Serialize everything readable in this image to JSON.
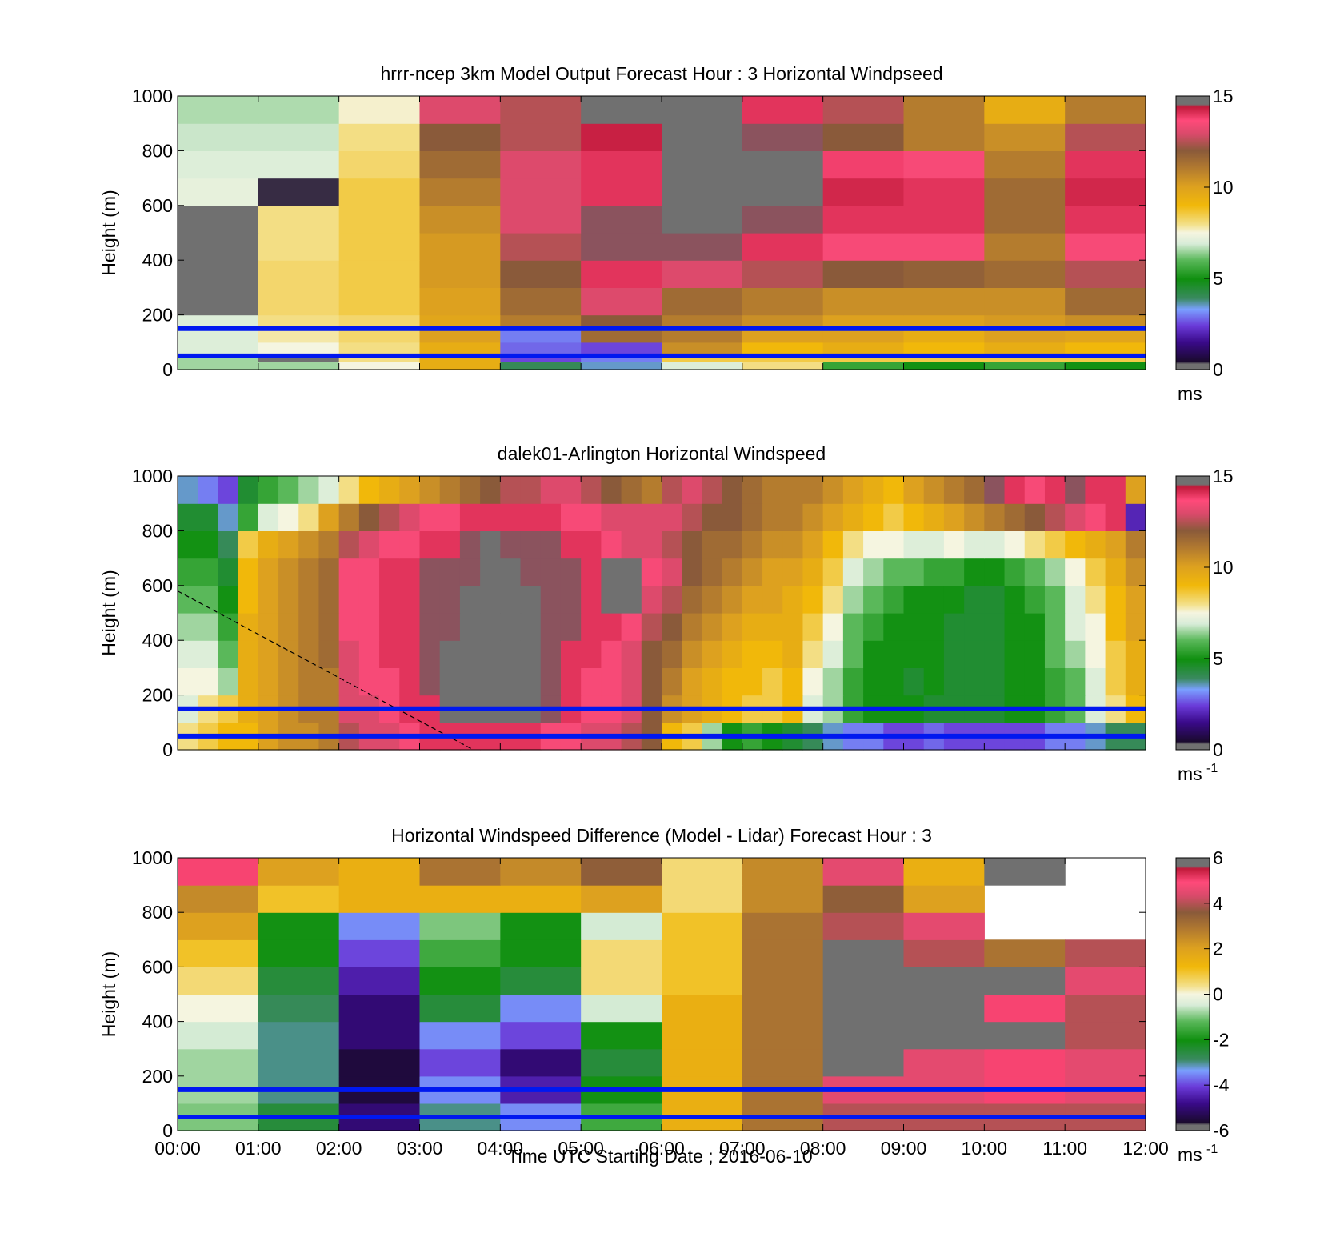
{
  "figure": {
    "xlabel": "Time UTC  Starting Date ; 2016-06-10",
    "x_ticks": [
      "00:00",
      "01:00",
      "02:00",
      "03:00",
      "04:00",
      "05:00",
      "06:00",
      "07:00",
      "08:00",
      "09:00",
      "10:00",
      "11:00",
      "12:00"
    ]
  },
  "chart_data": [
    {
      "type": "heatmap",
      "title": "hrrr-ncep 3km Model Output   Forecast Hour : 3 Horizontal Windpseed",
      "ylabel": "Height (m)",
      "xlim": [
        "00:00",
        "12:00"
      ],
      "ylim": [
        0,
        1000
      ],
      "y_ticks": [
        0,
        200,
        400,
        600,
        800,
        1000
      ],
      "colorbar": {
        "min": 0,
        "max": 15,
        "ticks": [
          0,
          5,
          10,
          15
        ],
        "unit": "ms"
      },
      "overlay_lines_height_m": [
        150,
        50
      ],
      "overlay_line_color": "#0018f0",
      "time_bins": [
        "00:00",
        "01:00",
        "02:00",
        "03:00",
        "04:00",
        "05:00",
        "06:00",
        "07:00",
        "08:00",
        "09:00",
        "10:00",
        "11:00"
      ],
      "height_bins_m": [
        [
          0,
          30
        ],
        [
          30,
          60
        ],
        [
          60,
          100
        ],
        [
          100,
          150
        ],
        [
          150,
          200
        ],
        [
          200,
          300
        ],
        [
          300,
          400
        ],
        [
          400,
          500
        ],
        [
          500,
          600
        ],
        [
          600,
          700
        ],
        [
          700,
          800
        ],
        [
          800,
          900
        ],
        [
          900,
          1000
        ]
      ],
      "values": [
        [
          6.5,
          6.5,
          7.5,
          9.5,
          4.0,
          3.5,
          7.0,
          8.0,
          5.5,
          5.0,
          5.5,
          5.0
        ],
        [
          6.5,
          0.2,
          8.0,
          9.5,
          2.5,
          3.0,
          8.5,
          8.5,
          8.5,
          8.5,
          8.5,
          8.5
        ],
        [
          7.0,
          7.5,
          8.0,
          9.5,
          2.8,
          2.5,
          10.5,
          9.0,
          9.5,
          9.0,
          9.5,
          9.0
        ],
        [
          7.0,
          7.8,
          8.2,
          10.0,
          3.0,
          11.5,
          11.0,
          10.0,
          10.0,
          9.5,
          10.0,
          9.8
        ],
        [
          7.0,
          8.0,
          8.2,
          9.8,
          11.0,
          12.0,
          11.0,
          10.5,
          10.0,
          10.0,
          10.2,
          10.5
        ],
        [
          0.3,
          8.2,
          8.5,
          10.0,
          11.5,
          13.0,
          11.5,
          11.0,
          10.5,
          10.5,
          10.5,
          11.5
        ],
        [
          0.3,
          8.2,
          8.5,
          10.2,
          12.0,
          14.0,
          13.0,
          12.5,
          12.0,
          11.8,
          11.5,
          12.5
        ],
        [
          0.3,
          8.0,
          8.5,
          10.2,
          12.5,
          14.5,
          14.5,
          14.0,
          13.5,
          13.5,
          11.0,
          13.5
        ],
        [
          0.3,
          8.0,
          8.5,
          10.5,
          13.0,
          14.5,
          14.8,
          14.5,
          14.0,
          14.0,
          11.5,
          14.0
        ],
        [
          7.2,
          0.4,
          8.5,
          11.0,
          13.0,
          14.0,
          0.2,
          0.2,
          14.2,
          14.0,
          11.5,
          14.2
        ],
        [
          7.0,
          7.0,
          8.2,
          11.5,
          13.0,
          14.0,
          0.2,
          15.0,
          13.8,
          13.5,
          11.0,
          14.0
        ],
        [
          6.8,
          6.8,
          8.0,
          12.0,
          12.5,
          14.3,
          0.2,
          14.5,
          12.0,
          11.0,
          10.5,
          12.5
        ],
        [
          6.6,
          6.6,
          7.6,
          13.0,
          12.5,
          0.2,
          0.2,
          14.0,
          12.5,
          11.0,
          9.5,
          11.0
        ]
      ]
    },
    {
      "type": "heatmap",
      "title": "dalek01-Arlington  Horizontal Windspeed",
      "ylabel": "Height (m)",
      "xlim": [
        "00:00",
        "12:00"
      ],
      "ylim": [
        0,
        1000
      ],
      "y_ticks": [
        0,
        200,
        400,
        600,
        800,
        1000
      ],
      "colorbar": {
        "min": 0,
        "max": 15,
        "ticks": [
          0,
          5,
          10,
          15
        ],
        "unit": "ms",
        "unit_exponent": "-1"
      },
      "overlay_lines_height_m": [
        150,
        50
      ],
      "overlay_line_color": "#0018f0",
      "dashed_line": {
        "from": [
          "00:00",
          580
        ],
        "to": [
          "03:40",
          0
        ],
        "color": "#000000"
      },
      "time_bins": [
        "00:00",
        "00:15",
        "00:30",
        "00:45",
        "01:00",
        "01:15",
        "01:30",
        "01:45",
        "02:00",
        "02:15",
        "02:30",
        "02:45",
        "03:00",
        "03:15",
        "03:30",
        "03:45",
        "04:00",
        "04:15",
        "04:30",
        "04:45",
        "05:00",
        "05:15",
        "05:30",
        "05:45",
        "06:00",
        "06:15",
        "06:30",
        "06:45",
        "07:00",
        "07:15",
        "07:30",
        "07:45",
        "08:00",
        "08:15",
        "08:30",
        "08:45",
        "09:00",
        "09:15",
        "09:30",
        "09:45",
        "10:00",
        "10:15",
        "10:30",
        "10:45",
        "11:00",
        "11:15",
        "11:30",
        "11:45"
      ],
      "height_bins_m": [
        [
          0,
          100
        ],
        [
          100,
          200
        ],
        [
          200,
          300
        ],
        [
          300,
          400
        ],
        [
          400,
          500
        ],
        [
          500,
          600
        ],
        [
          600,
          700
        ],
        [
          700,
          800
        ],
        [
          800,
          900
        ],
        [
          900,
          1000
        ]
      ],
      "values": [
        [
          8.0,
          8.5,
          9.0,
          9.0,
          10.0,
          10.5,
          10.5,
          11.0,
          12.5,
          13.0,
          13.0,
          13.5,
          14.0,
          14.0,
          14.0,
          14.0,
          14.0,
          14.0,
          13.5,
          13.5,
          13.0,
          13.0,
          12.5,
          12.0,
          9.0,
          8.5,
          6.5,
          5.0,
          5.5,
          5.0,
          4.5,
          4.0,
          3.5,
          3.0,
          3.0,
          2.5,
          2.5,
          2.8,
          2.5,
          2.5,
          2.5,
          2.5,
          2.5,
          3.0,
          3.0,
          3.5,
          4.0,
          4.0
        ],
        [
          7.0,
          8.0,
          8.5,
          9.5,
          10.0,
          10.5,
          11.0,
          11.0,
          13.0,
          13.0,
          13.5,
          14.0,
          14.0,
          0.2,
          0.2,
          0.2,
          0.2,
          0.2,
          14.5,
          14.0,
          13.5,
          13.5,
          13.0,
          12.0,
          10.5,
          10.0,
          9.5,
          9.0,
          8.5,
          8.5,
          9.0,
          7.0,
          6.5,
          5.5,
          5.0,
          5.0,
          5.0,
          4.5,
          4.5,
          4.5,
          4.5,
          5.0,
          5.0,
          5.5,
          6.0,
          7.0,
          8.0,
          9.0
        ],
        [
          7.5,
          7.5,
          6.5,
          9.5,
          10.0,
          10.5,
          11.0,
          11.0,
          13.0,
          13.5,
          13.5,
          14.0,
          14.5,
          0.2,
          0.2,
          0.2,
          0.2,
          0.2,
          14.5,
          14.0,
          13.5,
          13.5,
          13.0,
          12.0,
          11.0,
          10.0,
          9.5,
          9.0,
          9.0,
          8.5,
          9.0,
          7.5,
          6.5,
          5.5,
          5.0,
          5.0,
          4.5,
          5.0,
          4.5,
          4.5,
          4.5,
          5.0,
          5.0,
          5.5,
          6.0,
          7.0,
          8.5,
          9.5
        ],
        [
          7.0,
          7.0,
          6.0,
          9.5,
          10.0,
          10.5,
          11.0,
          11.5,
          13.0,
          13.5,
          14.0,
          14.0,
          14.5,
          0.2,
          0.2,
          0.2,
          0.2,
          0.2,
          14.5,
          14.0,
          14.0,
          13.5,
          13.0,
          12.0,
          11.5,
          10.5,
          10.0,
          9.5,
          9.0,
          9.0,
          9.5,
          8.0,
          7.0,
          6.0,
          5.0,
          5.0,
          5.0,
          5.0,
          4.5,
          4.5,
          4.5,
          5.0,
          5.0,
          6.0,
          6.5,
          7.5,
          8.5,
          9.5
        ],
        [
          6.5,
          6.5,
          5.5,
          9.5,
          10.0,
          10.5,
          11.0,
          11.5,
          13.5,
          13.5,
          14.0,
          14.0,
          14.5,
          14.5,
          0.2,
          0.2,
          0.2,
          0.2,
          14.5,
          14.5,
          14.0,
          14.0,
          13.5,
          12.5,
          12.0,
          11.0,
          10.5,
          10.0,
          9.5,
          9.5,
          9.5,
          8.5,
          7.5,
          6.0,
          5.5,
          5.0,
          5.0,
          5.0,
          4.5,
          4.5,
          4.5,
          5.0,
          5.0,
          6.0,
          7.0,
          7.5,
          9.0,
          10.0
        ],
        [
          6.0,
          6.0,
          5.0,
          9.0,
          10.0,
          10.5,
          11.0,
          11.5,
          13.5,
          13.5,
          14.0,
          14.0,
          14.5,
          14.5,
          0.2,
          0.2,
          0.2,
          0.2,
          14.5,
          14.5,
          14.0,
          0.2,
          0.2,
          13.0,
          12.5,
          11.5,
          11.0,
          10.5,
          10.0,
          10.0,
          9.5,
          9.0,
          8.0,
          6.5,
          6.0,
          5.5,
          5.0,
          5.0,
          5.0,
          4.5,
          4.5,
          5.0,
          5.5,
          6.0,
          7.0,
          8.0,
          9.0,
          10.0
        ],
        [
          5.5,
          5.5,
          4.5,
          9.0,
          10.0,
          10.5,
          11.0,
          11.5,
          13.5,
          13.5,
          14.0,
          14.0,
          14.5,
          14.5,
          14.5,
          0.2,
          0.2,
          14.5,
          14.5,
          14.5,
          14.0,
          0.2,
          0.2,
          13.5,
          13.0,
          12.0,
          11.5,
          11.0,
          10.5,
          10.0,
          10.0,
          9.5,
          8.5,
          7.0,
          6.5,
          6.0,
          6.0,
          5.5,
          5.5,
          5.0,
          5.0,
          5.5,
          6.0,
          6.5,
          7.5,
          8.5,
          9.5,
          10.5
        ],
        [
          5.0,
          5.0,
          4.0,
          8.5,
          9.5,
          10.0,
          10.5,
          11.0,
          12.5,
          13.0,
          13.5,
          13.5,
          14.0,
          14.0,
          14.5,
          0.2,
          14.5,
          14.5,
          14.5,
          14.0,
          14.0,
          13.5,
          13.0,
          13.0,
          12.5,
          12.0,
          11.5,
          11.5,
          11.0,
          10.5,
          10.5,
          10.0,
          9.0,
          8.0,
          7.5,
          7.5,
          7.0,
          7.0,
          7.5,
          7.0,
          7.0,
          7.5,
          8.0,
          8.5,
          9.0,
          9.5,
          10.0,
          11.0
        ],
        [
          4.5,
          4.5,
          3.5,
          5.5,
          7.0,
          7.5,
          8.0,
          10.0,
          11.0,
          12.0,
          12.5,
          13.0,
          13.5,
          13.5,
          14.0,
          14.0,
          14.0,
          14.0,
          14.0,
          13.5,
          13.5,
          13.0,
          13.0,
          13.0,
          13.0,
          12.5,
          12.0,
          12.0,
          11.5,
          11.0,
          11.0,
          10.5,
          10.0,
          9.5,
          9.0,
          8.5,
          9.0,
          9.5,
          10.0,
          10.5,
          11.0,
          11.5,
          12.0,
          12.5,
          13.0,
          13.5,
          14.0,
          2.0
        ],
        [
          3.5,
          3.0,
          2.5,
          4.5,
          5.5,
          6.0,
          6.5,
          7.0,
          8.0,
          9.0,
          9.5,
          10.0,
          10.5,
          11.0,
          11.5,
          12.0,
          12.5,
          12.5,
          13.0,
          13.0,
          12.5,
          12.0,
          11.5,
          11.0,
          12.5,
          13.0,
          12.5,
          12.0,
          11.5,
          11.0,
          11.0,
          11.0,
          10.5,
          10.0,
          9.5,
          9.0,
          10.0,
          10.5,
          11.0,
          11.5,
          14.5,
          14.0,
          13.5,
          14.0,
          14.5,
          14.0,
          14.0,
          10.0
        ]
      ]
    },
    {
      "type": "heatmap",
      "title": "Horizontal Windspeed Difference (Model - Lidar) Forecast Hour : 3",
      "ylabel": "Height (m)",
      "xlim": [
        "00:00",
        "12:00"
      ],
      "ylim": [
        0,
        1000
      ],
      "y_ticks": [
        0,
        200,
        400,
        600,
        800,
        1000
      ],
      "colorbar": {
        "min": -6,
        "max": 6,
        "ticks": [
          -6,
          -4,
          -2,
          0,
          2,
          4,
          6
        ],
        "unit": "ms",
        "unit_exponent": "-1"
      },
      "overlay_lines_height_m": [
        150,
        50
      ],
      "overlay_line_color": "#0018f0",
      "time_bins": [
        "00:00",
        "01:00",
        "02:00",
        "03:00",
        "04:00",
        "05:00",
        "06:00",
        "07:00",
        "08:00",
        "09:00",
        "10:00",
        "11:00"
      ],
      "height_bins_m": [
        [
          0,
          100
        ],
        [
          100,
          200
        ],
        [
          200,
          300
        ],
        [
          300,
          400
        ],
        [
          400,
          500
        ],
        [
          500,
          600
        ],
        [
          600,
          700
        ],
        [
          700,
          800
        ],
        [
          800,
          900
        ],
        [
          900,
          1000
        ]
      ],
      "values": [
        [
          -1.0,
          -2.5,
          -5.0,
          -3.0,
          -3.5,
          -1.5,
          1.5,
          3.0,
          4.0,
          4.0,
          4.0,
          4.0
        ],
        [
          -0.8,
          -3.0,
          -5.5,
          -3.5,
          -4.5,
          -2.0,
          1.5,
          3.0,
          4.5,
          4.5,
          5.0,
          4.5
        ],
        [
          -0.8,
          -3.0,
          -5.5,
          -4.0,
          -5.0,
          -2.5,
          1.5,
          3.0,
          5.8,
          4.5,
          5.0,
          4.5
        ],
        [
          -0.5,
          -3.0,
          -5.0,
          -3.5,
          -4.0,
          -2.0,
          1.5,
          3.0,
          5.8,
          5.8,
          5.8,
          4.0
        ],
        [
          0.0,
          -2.8,
          -5.0,
          -2.5,
          -3.5,
          -0.5,
          1.5,
          3.0,
          5.8,
          5.8,
          5.0,
          4.0
        ],
        [
          0.5,
          -2.5,
          -4.5,
          -2.0,
          -2.5,
          0.5,
          1.0,
          3.0,
          5.8,
          5.8,
          5.8,
          4.5
        ],
        [
          1.0,
          -2.0,
          -4.0,
          -1.5,
          -2.0,
          0.5,
          1.0,
          3.0,
          5.8,
          4.0,
          3.0,
          4.0
        ],
        [
          2.0,
          -2.0,
          -3.5,
          -1.0,
          -2.0,
          -0.5,
          1.0,
          3.0,
          4.0,
          4.5,
          null,
          null
        ],
        [
          2.5,
          1.0,
          1.5,
          1.5,
          1.5,
          2.0,
          0.5,
          2.5,
          3.5,
          2.0,
          null,
          null
        ],
        [
          5.0,
          2.0,
          1.5,
          3.0,
          2.5,
          3.5,
          0.5,
          2.5,
          4.5,
          1.5,
          5.8,
          null
        ]
      ]
    }
  ]
}
